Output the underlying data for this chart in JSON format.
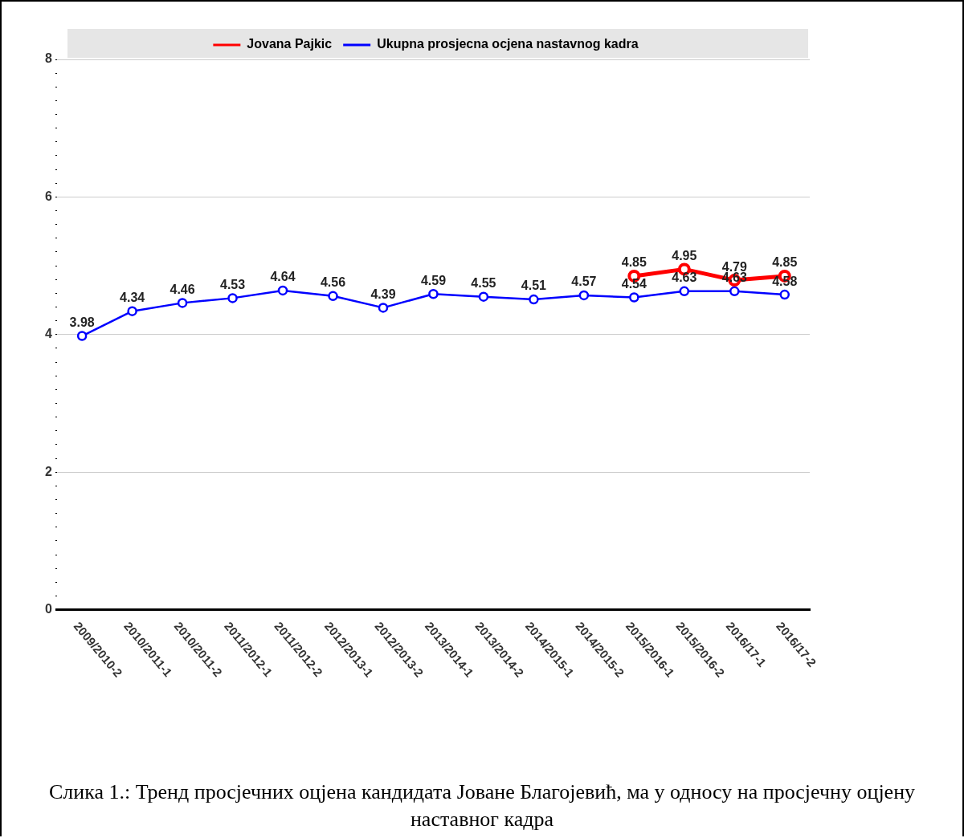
{
  "chart_data": {
    "type": "line",
    "categories": [
      "2009/2010-2",
      "2010/2011-1",
      "2010/2011-2",
      "2011/2012-1",
      "2011/2012-2",
      "2012/2013-1",
      "2012/2013-2",
      "2013/2014-1",
      "2013/2014-2",
      "2014/2015-1",
      "2014/2015-2",
      "2015/2016-1",
      "2015/2016-2",
      "2016/17-1",
      "2016/17-2"
    ],
    "series": [
      {
        "name": "Jovana Pajkic",
        "color": "#ff0000",
        "values": [
          null,
          null,
          null,
          null,
          null,
          null,
          null,
          null,
          null,
          null,
          null,
          4.85,
          4.95,
          4.79,
          4.85
        ]
      },
      {
        "name": "Ukupna prosjecna ocjena nastavnog kadra",
        "color": "#0000ff",
        "values": [
          3.98,
          4.34,
          4.46,
          4.53,
          4.64,
          4.56,
          4.39,
          4.59,
          4.55,
          4.51,
          4.57,
          4.54,
          4.63,
          4.63,
          4.58
        ]
      }
    ],
    "ylim": [
      0,
      8
    ],
    "yticks": [
      0,
      {
        "value": 0.2,
        "label": null
      },
      {
        "value": 0.4,
        "label": null
      },
      {
        "value": 0.6,
        "label": null
      },
      {
        "value": 0.8,
        "label": null
      },
      {
        "value": 1,
        "label": null
      },
      {
        "value": 1.2,
        "label": null
      },
      {
        "value": 1.4,
        "label": null
      },
      {
        "value": 1.6,
        "label": null
      },
      {
        "value": 1.8,
        "label": null
      },
      2,
      {
        "value": 2.2,
        "label": null
      },
      {
        "value": 2.4,
        "label": null
      },
      {
        "value": 2.6,
        "label": null
      },
      {
        "value": 2.8,
        "label": null
      },
      {
        "value": 3,
        "label": null
      },
      {
        "value": 3.2,
        "label": null
      },
      {
        "value": 3.4,
        "label": null
      },
      {
        "value": 3.6,
        "label": null
      },
      {
        "value": 3.8,
        "label": null
      },
      4,
      {
        "value": 4.2,
        "label": null
      },
      {
        "value": 4.4,
        "label": null
      },
      {
        "value": 4.6,
        "label": null
      },
      {
        "value": 4.8,
        "label": null
      },
      {
        "value": 5,
        "label": null
      },
      {
        "value": 5.2,
        "label": null
      },
      {
        "value": 5.4,
        "label": null
      },
      {
        "value": 5.6,
        "label": null
      },
      {
        "value": 5.8,
        "label": null
      },
      6,
      {
        "value": 6.2,
        "label": null
      },
      {
        "value": 6.4,
        "label": null
      },
      {
        "value": 6.6,
        "label": null
      },
      {
        "value": 6.8,
        "label": null
      },
      {
        "value": 7,
        "label": null
      },
      {
        "value": 7.2,
        "label": null
      },
      {
        "value": 7.4,
        "label": null
      },
      {
        "value": 7.6,
        "label": null
      },
      {
        "value": 7.8,
        "label": null
      },
      8
    ],
    "grid": "y",
    "legend": "top",
    "marker": "circle",
    "line_style": "solid",
    "data_labels": true,
    "annotations": [
      "Слика 1.: Тренд просјечних оцјена кандидата Јоване Благојевић, ма у односу на просјечну оцјену наставног кадра"
    ]
  }
}
